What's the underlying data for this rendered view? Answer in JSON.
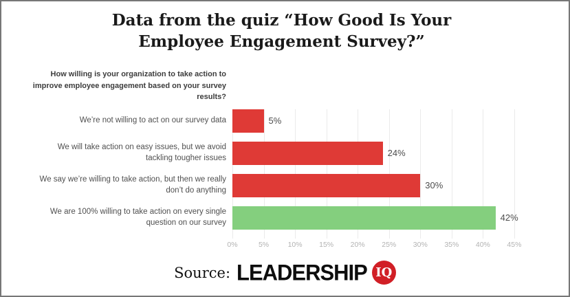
{
  "title": {
    "line1": "Data from the quiz “How Good Is Your",
    "line2": "Employee Engagement Survey?”"
  },
  "question": "How willing is your organization to take action to improve employee engagement based on your survey results?",
  "chart_data": {
    "type": "bar",
    "orientation": "horizontal",
    "title": "Data from the quiz “How Good Is Your Employee Engagement Survey?”",
    "categories": [
      "We’re not willing to act on our survey data",
      "We will take action on easy issues, but we avoid tackling tougher issues",
      "We say we’re willing to take action, but then we really don’t do anything",
      "We are 100% willing to take action on every single question on our survey"
    ],
    "values": [
      5,
      24,
      30,
      42
    ],
    "value_labels": [
      "5%",
      "24%",
      "30%",
      "42%"
    ],
    "bar_colors": [
      "#df3a36",
      "#df3a36",
      "#df3a36",
      "#84cf7e"
    ],
    "x_ticks": [
      "0%",
      "5%",
      "10%",
      "15%",
      "20%",
      "25%",
      "30%",
      "35%",
      "40%",
      "45%"
    ],
    "xlim": [
      0,
      45
    ],
    "grid": true,
    "xlabel": "",
    "ylabel": ""
  },
  "source": {
    "prefix": "Source:",
    "brand": "LEADERSHIP",
    "badge": "IQ"
  },
  "colors": {
    "bar_red": "#df3a36",
    "bar_green": "#84cf7e",
    "badge_red": "#d11f26",
    "tick_label": "#b2b2b2",
    "category_label": "#4f4f4f",
    "gridline": "#eaeaea",
    "frame_border": "#777777"
  }
}
